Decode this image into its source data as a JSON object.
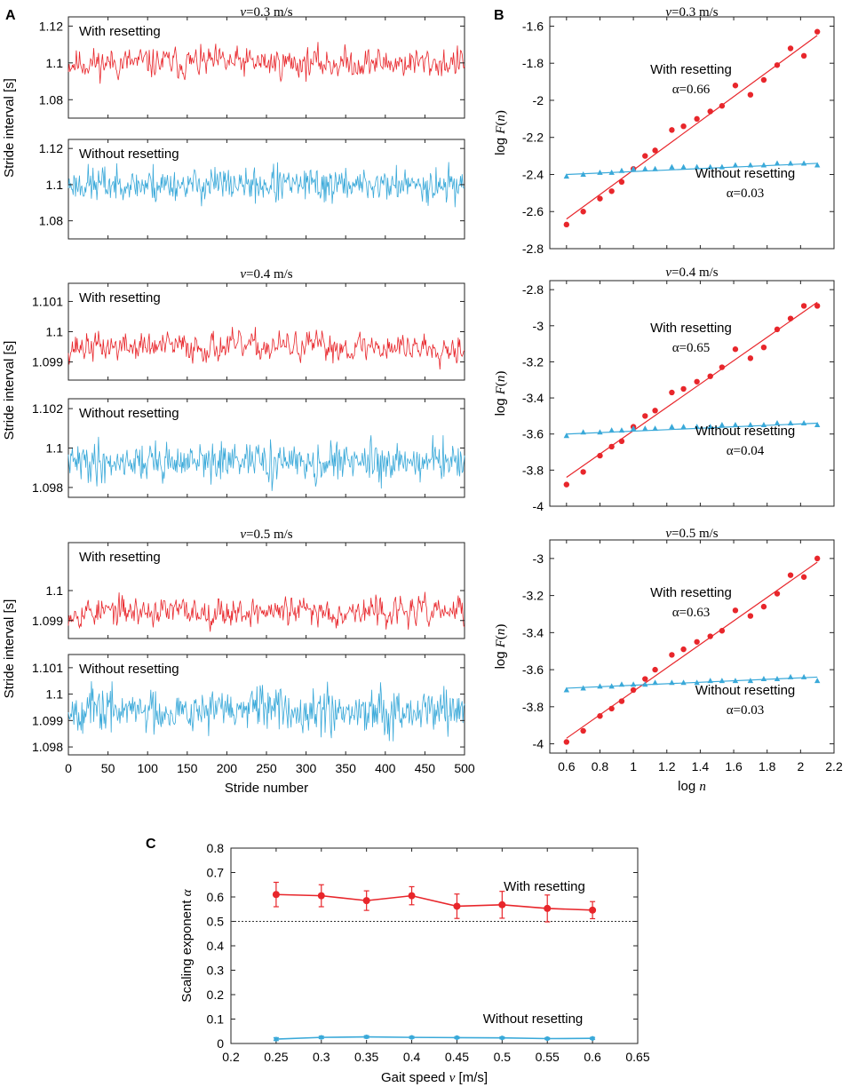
{
  "panel_labels": {
    "A": "A",
    "B": "B",
    "C": "C"
  },
  "chart_data": [
    {
      "type": "line",
      "panel": "A",
      "speed_label": "v =0.3 m/s",
      "xlabel": "Stride number",
      "ylabel": "Stride interval [s]",
      "xlim": [
        0,
        500
      ],
      "xticks": [
        "0",
        "50",
        "100",
        "150",
        "200",
        "250",
        "300",
        "350",
        "400",
        "450",
        "500"
      ],
      "subplots": [
        {
          "label": "With resetting",
          "color": "#e8262b",
          "ylim": [
            1.07,
            1.125
          ],
          "yticks": [
            1.08,
            1.1,
            1.12
          ],
          "ytick_labels": [
            "1.08",
            "1.1",
            "1.12"
          ],
          "mean": 1.1,
          "amplitude": 0.006,
          "seed": 11,
          "n": 500
        },
        {
          "label": "Without resetting",
          "color": "#3aa9d9",
          "ylim": [
            1.07,
            1.125
          ],
          "yticks": [
            1.08,
            1.1,
            1.12
          ],
          "ytick_labels": [
            "1.08",
            "1.1",
            "1.12"
          ],
          "mean": 1.1,
          "amplitude": 0.006,
          "seed": 23,
          "n": 500
        }
      ]
    },
    {
      "type": "line",
      "panel": "A",
      "speed_label": "v =0.4 m/s",
      "xlabel": "Stride number",
      "ylabel": "Stride interval [s]",
      "xlim": [
        0,
        500
      ],
      "xticks": [
        "0",
        "50",
        "100",
        "150",
        "200",
        "250",
        "300",
        "350",
        "400",
        "450",
        "500"
      ],
      "subplots": [
        {
          "label": "With resetting",
          "color": "#e8262b",
          "ylim": [
            1.0984,
            1.1016
          ],
          "yticks": [
            1.099,
            1.1,
            1.101
          ],
          "ytick_labels": [
            "1.099",
            "1.1",
            "1.101"
          ],
          "mean": 1.0995,
          "amplitude": 0.00035,
          "seed": 37,
          "n": 500
        },
        {
          "label": "Without resetting",
          "color": "#3aa9d9",
          "ylim": [
            1.0975,
            1.1025
          ],
          "yticks": [
            1.098,
            1.1,
            1.102
          ],
          "ytick_labels": [
            "1.098",
            "1.1",
            "1.102"
          ],
          "mean": 1.0993,
          "amplitude": 0.0006,
          "seed": 41,
          "n": 500
        }
      ]
    },
    {
      "type": "line",
      "panel": "A",
      "speed_label": "v =0.5 m/s",
      "xlabel": "Stride number",
      "ylabel": "Stride interval [s]",
      "xlim": [
        0,
        500
      ],
      "xticks": [
        "0",
        "50",
        "100",
        "150",
        "200",
        "250",
        "300",
        "350",
        "400",
        "450",
        "500"
      ],
      "subplots": [
        {
          "label": "With resetting",
          "color": "#e8262b",
          "ylim": [
            1.0984,
            1.1016
          ],
          "yticks": [
            1.099,
            1.1
          ],
          "ytick_labels": [
            "1.099",
            "1.1"
          ],
          "mean": 1.0993,
          "amplitude": 0.00035,
          "seed": 53,
          "n": 500
        },
        {
          "label": "Without resetting",
          "color": "#3aa9d9",
          "ylim": [
            1.0977,
            1.1015
          ],
          "yticks": [
            1.098,
            1.099,
            1.1,
            1.101
          ],
          "ytick_labels": [
            "1.098",
            "1.099",
            "1.1",
            "1.101"
          ],
          "mean": 1.0994,
          "amplitude": 0.0005,
          "seed": 67,
          "n": 500
        }
      ]
    },
    {
      "type": "scatter",
      "panel": "B",
      "speed_label": "v =0.3 m/s",
      "xlabel": "log n",
      "ylabel": "log F(n)",
      "xlim": [
        0.5,
        2.2
      ],
      "ylim": [
        -2.8,
        -1.55
      ],
      "yticks": [
        -2.8,
        -2.6,
        -2.4,
        -2.2,
        -2.0,
        -1.8,
        -1.6
      ],
      "ytick_labels": [
        "-2.8",
        "-2.6",
        "-2.4",
        "-2.2",
        "-2",
        "-1.8",
        "-1.6"
      ],
      "series": [
        {
          "name": "With resetting",
          "alpha_label": "α=0.66",
          "color": "#e8262b",
          "marker": "circle",
          "x": [
            0.6,
            0.7,
            0.8,
            0.87,
            0.93,
            1.0,
            1.07,
            1.13,
            1.23,
            1.3,
            1.38,
            1.46,
            1.53,
            1.61,
            1.7,
            1.78,
            1.86,
            1.94,
            2.02,
            2.1
          ],
          "y": [
            -2.67,
            -2.6,
            -2.53,
            -2.49,
            -2.44,
            -2.37,
            -2.3,
            -2.27,
            -2.16,
            -2.14,
            -2.1,
            -2.06,
            -2.03,
            -1.92,
            -1.97,
            -1.89,
            -1.81,
            -1.72,
            -1.76,
            -1.63
          ],
          "fit": [
            -2.64,
            -1.65
          ]
        },
        {
          "name": "Without resetting",
          "alpha_label": "α=0.03",
          "color": "#3aa9d9",
          "marker": "triangle",
          "x": [
            0.6,
            0.7,
            0.8,
            0.87,
            0.93,
            1.0,
            1.07,
            1.13,
            1.23,
            1.3,
            1.38,
            1.46,
            1.53,
            1.61,
            1.7,
            1.78,
            1.86,
            1.94,
            2.02,
            2.1
          ],
          "y": [
            -2.41,
            -2.4,
            -2.39,
            -2.39,
            -2.38,
            -2.37,
            -2.37,
            -2.37,
            -2.36,
            -2.36,
            -2.36,
            -2.36,
            -2.36,
            -2.35,
            -2.35,
            -2.35,
            -2.34,
            -2.34,
            -2.34,
            -2.35
          ],
          "fit": [
            -2.4,
            -2.34
          ]
        }
      ]
    },
    {
      "type": "scatter",
      "panel": "B",
      "speed_label": "v =0.4 m/s",
      "xlabel": "log n",
      "ylabel": "log F(n)",
      "xlim": [
        0.5,
        2.2
      ],
      "ylim": [
        -4.0,
        -2.75
      ],
      "yticks": [
        -4.0,
        -3.8,
        -3.6,
        -3.4,
        -3.2,
        -3.0,
        -2.8
      ],
      "ytick_labels": [
        "-4",
        "-3.8",
        "-3.6",
        "-3.4",
        "-3.2",
        "-3",
        "-2.8"
      ],
      "series": [
        {
          "name": "With resetting",
          "alpha_label": "α=0.65",
          "color": "#e8262b",
          "marker": "circle",
          "x": [
            0.6,
            0.7,
            0.8,
            0.87,
            0.93,
            1.0,
            1.07,
            1.13,
            1.23,
            1.3,
            1.38,
            1.46,
            1.53,
            1.61,
            1.7,
            1.78,
            1.86,
            1.94,
            2.02,
            2.1
          ],
          "y": [
            -3.88,
            -3.81,
            -3.72,
            -3.67,
            -3.64,
            -3.56,
            -3.5,
            -3.47,
            -3.37,
            -3.35,
            -3.31,
            -3.28,
            -3.23,
            -3.13,
            -3.18,
            -3.12,
            -3.02,
            -2.96,
            -2.89,
            -2.89
          ],
          "fit": [
            -3.84,
            -2.87
          ]
        },
        {
          "name": "Without resetting",
          "alpha_label": "α=0.04",
          "color": "#3aa9d9",
          "marker": "triangle",
          "x": [
            0.6,
            0.7,
            0.8,
            0.87,
            0.93,
            1.0,
            1.07,
            1.13,
            1.23,
            1.3,
            1.38,
            1.46,
            1.53,
            1.61,
            1.7,
            1.78,
            1.86,
            1.94,
            2.02,
            2.1
          ],
          "y": [
            -3.61,
            -3.59,
            -3.59,
            -3.58,
            -3.58,
            -3.57,
            -3.57,
            -3.57,
            -3.56,
            -3.56,
            -3.56,
            -3.56,
            -3.55,
            -3.55,
            -3.55,
            -3.55,
            -3.54,
            -3.54,
            -3.54,
            -3.55
          ],
          "fit": [
            -3.6,
            -3.54
          ]
        }
      ]
    },
    {
      "type": "scatter",
      "panel": "B",
      "speed_label": "v =0.5 m/s",
      "xlabel": "log n",
      "ylabel": "log F(n)",
      "xlim": [
        0.5,
        2.2
      ],
      "ylim": [
        -4.05,
        -2.9
      ],
      "yticks": [
        -4.0,
        -3.8,
        -3.6,
        -3.4,
        -3.2,
        -3.0
      ],
      "ytick_labels": [
        "-4",
        "-3.8",
        "-3.6",
        "-3.4",
        "-3.2",
        "-3"
      ],
      "xticks": [
        0.6,
        0.8,
        1.0,
        1.2,
        1.4,
        1.6,
        1.8,
        2.0,
        2.2
      ],
      "xtick_labels": [
        "0.6",
        "0.8",
        "1",
        "1.2",
        "1.4",
        "1.6",
        "1.8",
        "2",
        "2.2"
      ],
      "series": [
        {
          "name": "With resetting",
          "alpha_label": "α=0.63",
          "color": "#e8262b",
          "marker": "circle",
          "x": [
            0.6,
            0.7,
            0.8,
            0.87,
            0.93,
            1.0,
            1.07,
            1.13,
            1.23,
            1.3,
            1.38,
            1.46,
            1.53,
            1.61,
            1.7,
            1.78,
            1.86,
            1.94,
            2.02,
            2.1
          ],
          "y": [
            -3.99,
            -3.93,
            -3.85,
            -3.81,
            -3.77,
            -3.71,
            -3.65,
            -3.6,
            -3.52,
            -3.49,
            -3.45,
            -3.42,
            -3.39,
            -3.28,
            -3.31,
            -3.26,
            -3.19,
            -3.09,
            -3.1,
            -3.0
          ],
          "fit": [
            -3.97,
            -3.02
          ]
        },
        {
          "name": "Without resetting",
          "alpha_label": "α=0.03",
          "color": "#3aa9d9",
          "marker": "triangle",
          "x": [
            0.6,
            0.7,
            0.8,
            0.87,
            0.93,
            1.0,
            1.07,
            1.13,
            1.23,
            1.3,
            1.38,
            1.46,
            1.53,
            1.61,
            1.7,
            1.78,
            1.86,
            1.94,
            2.02,
            2.1
          ],
          "y": [
            -3.71,
            -3.7,
            -3.69,
            -3.69,
            -3.68,
            -3.68,
            -3.68,
            -3.67,
            -3.67,
            -3.67,
            -3.67,
            -3.66,
            -3.66,
            -3.66,
            -3.66,
            -3.65,
            -3.65,
            -3.64,
            -3.64,
            -3.66
          ],
          "fit": [
            -3.7,
            -3.64
          ]
        }
      ]
    },
    {
      "type": "line",
      "panel": "C",
      "title": "",
      "xlabel": "Gait speed v  [m/s]",
      "ylabel": "Scaling exponent α",
      "xlim": [
        0.2,
        0.65
      ],
      "ylim": [
        0,
        0.8
      ],
      "xticks": [
        0.2,
        0.25,
        0.3,
        0.35,
        0.4,
        0.45,
        0.5,
        0.55,
        0.6,
        0.65
      ],
      "xtick_labels": [
        "0.2",
        "0.25",
        "0.3",
        "0.35",
        "0.4",
        "0.45",
        "0.5",
        "0.55",
        "0.6",
        "0.65"
      ],
      "yticks": [
        0,
        0.1,
        0.2,
        0.3,
        0.4,
        0.5,
        0.6,
        0.7,
        0.8
      ],
      "ytick_labels": [
        "0",
        "0.1",
        "0.2",
        "0.3",
        "0.4",
        "0.5",
        "0.6",
        "0.7",
        "0.8"
      ],
      "reference_line": 0.5,
      "x": [
        0.25,
        0.3,
        0.35,
        0.4,
        0.45,
        0.5,
        0.55,
        0.6
      ],
      "series": [
        {
          "name": "With resetting",
          "color": "#e8262b",
          "values": [
            0.61,
            0.605,
            0.585,
            0.605,
            0.562,
            0.568,
            0.553,
            0.546
          ],
          "errors": [
            0.05,
            0.045,
            0.04,
            0.037,
            0.05,
            0.055,
            0.055,
            0.035
          ]
        },
        {
          "name": "Without resetting",
          "color": "#3aa9d9",
          "values": [
            0.018,
            0.025,
            0.027,
            0.025,
            0.024,
            0.023,
            0.02,
            0.021
          ],
          "errors": [
            0.006,
            0.005,
            0.005,
            0.004,
            0.004,
            0.004,
            0.004,
            0.004
          ]
        }
      ]
    }
  ]
}
